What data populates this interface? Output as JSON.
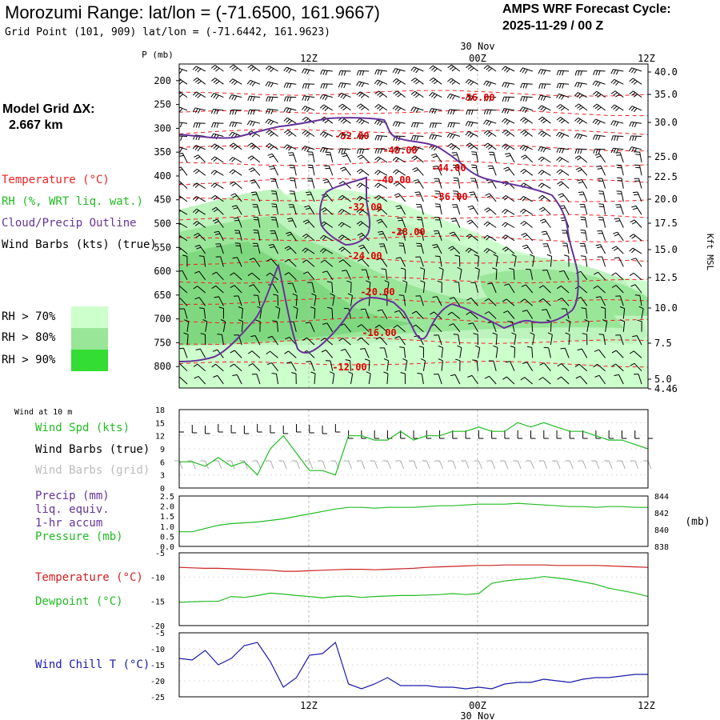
{
  "header": {
    "title": "Morozumi Range:  lat/lon = (-71.6500, 161.9667)",
    "subtitle": "Grid Point (101, 909) lat/lon = (-71.6442, 161.9623)",
    "cycle_label": "AMPS WRF Forecast Cycle:",
    "cycle_value": "2025-11-29 / 00  Z",
    "grid_label": "Model Grid ΔX:",
    "grid_value": "2.667 km"
  },
  "legend": {
    "temperature": "Temperature (°C)",
    "rh": "RH (%, WRT liq. wat.)",
    "cloud": "Cloud/Precip Outline",
    "wind": "Wind Barbs (kts) (true)",
    "rh70": "RH > 70%",
    "rh80": "RH > 80%",
    "rh90": "RH > 90%"
  },
  "colors": {
    "temp": "#ee2222",
    "rh70": "#ccffcc",
    "rh80": "#99e699",
    "rh90": "#33dd33",
    "cloud": "#663399",
    "green": "#22bb22",
    "wind_chill": "#1a1aaa"
  },
  "chart_data": [
    {
      "type": "line",
      "name": "cross-section",
      "title": "Morozumi Range",
      "ylabel": "P (mb)",
      "right_label": "Kft MSL",
      "x_ticks": [
        "12Z",
        "00Z",
        "12Z"
      ],
      "date_label": "30 Nov",
      "pressure_ticks": [
        200,
        250,
        300,
        350,
        400,
        450,
        500,
        550,
        600,
        650,
        700,
        750,
        800
      ],
      "height_ticks": [
        "40.0",
        "35.0",
        "30.0",
        "25.0",
        "22.5",
        "20.0",
        "17.5",
        "15.0",
        "12.5",
        "10.0",
        "7.5",
        "5.0",
        "4.46"
      ],
      "isotherm_labels": [
        "-56.00",
        "-52.00",
        "-48.00",
        "-44.00",
        "-40.00",
        "-36.00",
        "-32.00",
        "-28.00",
        "-24.00",
        "-20.00",
        "-16.00",
        "-12.00"
      ]
    },
    {
      "type": "line",
      "name": "wind",
      "label_top": "Wind at 10 m",
      "legend": [
        "Wind Spd (kts)",
        "Wind Barbs (true)",
        "Wind Barbs (grid)"
      ],
      "ylim": [
        0,
        18
      ],
      "y_ticks": [
        0,
        3,
        6,
        9,
        12,
        15,
        18
      ],
      "x": [
        0,
        1,
        2,
        3,
        4,
        5,
        6,
        7,
        8,
        9,
        10,
        11,
        12,
        13,
        14,
        15,
        16,
        17,
        18,
        19,
        20,
        21,
        22,
        23,
        24,
        25,
        26,
        27,
        28,
        29,
        30,
        31,
        32,
        33,
        34,
        35,
        36
      ],
      "values": [
        6,
        6,
        5,
        7,
        5,
        6,
        3,
        9,
        12,
        8,
        4,
        4,
        3,
        12,
        12,
        11,
        11,
        13,
        11,
        12,
        12,
        13,
        13,
        14,
        13,
        13,
        15,
        14,
        15,
        14,
        13,
        13,
        12,
        11,
        11,
        10,
        9
      ]
    },
    {
      "type": "line",
      "name": "precip-pressure",
      "legend": [
        "Precip (mm)",
        "liq. equiv.",
        "1-hr accum",
        "Pressure (mb)"
      ],
      "left_ticks": [
        "0.0",
        "0.5",
        "1.0",
        "1.5",
        "2.0",
        "2.5"
      ],
      "right_ticks": [
        "838",
        "840",
        "842",
        "844"
      ],
      "right_unit": "(mb)",
      "x": [
        0,
        1,
        2,
        3,
        4,
        5,
        6,
        7,
        8,
        9,
        10,
        11,
        12,
        13,
        14,
        15,
        16,
        17,
        18,
        19,
        20,
        21,
        22,
        23,
        24,
        25,
        26,
        27,
        28,
        29,
        30,
        31,
        32,
        33,
        34,
        35,
        36
      ],
      "pressure": [
        839.8,
        839.8,
        840.2,
        840.6,
        840.8,
        840.9,
        841.0,
        841.2,
        841.4,
        841.7,
        842.0,
        842.3,
        842.6,
        842.8,
        842.8,
        842.7,
        842.8,
        842.8,
        842.8,
        842.9,
        843.0,
        843.0,
        843.1,
        843.2,
        843.2,
        843.2,
        843.3,
        843.2,
        843.1,
        843.0,
        842.9,
        842.9,
        842.8,
        842.9,
        842.9,
        842.8,
        842.8
      ]
    },
    {
      "type": "line",
      "name": "temp-dewpoint",
      "legend": [
        "Temperature (°C)",
        "Dewpoint (°C)"
      ],
      "ylim": [
        -20,
        -5
      ],
      "y_ticks": [
        -5,
        -10,
        -15,
        -20
      ],
      "x": [
        0,
        1,
        2,
        3,
        4,
        5,
        6,
        7,
        8,
        9,
        10,
        11,
        12,
        13,
        14,
        15,
        16,
        17,
        18,
        19,
        20,
        21,
        22,
        23,
        24,
        25,
        26,
        27,
        28,
        29,
        30,
        31,
        32,
        33,
        34,
        35,
        36
      ],
      "temperature": [
        -8.0,
        -8.1,
        -8.2,
        -8.2,
        -8.3,
        -8.4,
        -8.5,
        -8.6,
        -8.8,
        -8.8,
        -8.7,
        -8.6,
        -8.5,
        -8.4,
        -8.4,
        -8.5,
        -8.4,
        -8.3,
        -8.2,
        -8.0,
        -7.9,
        -7.8,
        -7.7,
        -7.6,
        -7.6,
        -7.5,
        -7.5,
        -7.5,
        -7.5,
        -7.6,
        -7.6,
        -7.6,
        -7.6,
        -7.7,
        -7.8,
        -7.9,
        -8.0
      ],
      "dewpoint": [
        -15.2,
        -15.1,
        -15.0,
        -15.0,
        -14.0,
        -14.2,
        -13.8,
        -13.3,
        -13.5,
        -13.8,
        -14.0,
        -14.3,
        -14.0,
        -13.9,
        -14.2,
        -14.0,
        -13.9,
        -13.8,
        -13.8,
        -13.7,
        -13.6,
        -13.4,
        -13.6,
        -13.4,
        -11.3,
        -10.8,
        -10.5,
        -10.3,
        -9.9,
        -10.2,
        -10.5,
        -11.0,
        -11.5,
        -12.3,
        -12.8,
        -13.3,
        -14.0
      ]
    },
    {
      "type": "line",
      "name": "wind-chill",
      "legend": [
        "Wind Chill T (°C)"
      ],
      "ylim": [
        -25,
        -5
      ],
      "y_ticks": [
        -10,
        -15,
        -20,
        -25
      ],
      "x": [
        0,
        1,
        2,
        3,
        4,
        5,
        6,
        7,
        8,
        9,
        10,
        11,
        12,
        13,
        14,
        15,
        16,
        17,
        18,
        19,
        20,
        21,
        22,
        23,
        24,
        25,
        26,
        27,
        28,
        29,
        30,
        31,
        32,
        33,
        34,
        35,
        36
      ],
      "values": [
        -13,
        -13.5,
        -10.5,
        -15,
        -13,
        -9,
        -8,
        -14,
        -22,
        -19,
        -12,
        -11.5,
        -8,
        -21,
        -22.5,
        -21,
        -19,
        -21.5,
        -21.5,
        -21.5,
        -22,
        -22,
        -22.5,
        -22,
        -22.5,
        -21,
        -20.5,
        -20.5,
        -19.5,
        -20,
        -20.5,
        -19.5,
        -19,
        -19,
        -18.5,
        -18,
        -18
      ]
    }
  ],
  "bottom_axis": {
    "tick_12z_a": "12Z",
    "tick_00z": "00Z",
    "tick_12z_b": "12Z",
    "date": "30 Nov"
  }
}
